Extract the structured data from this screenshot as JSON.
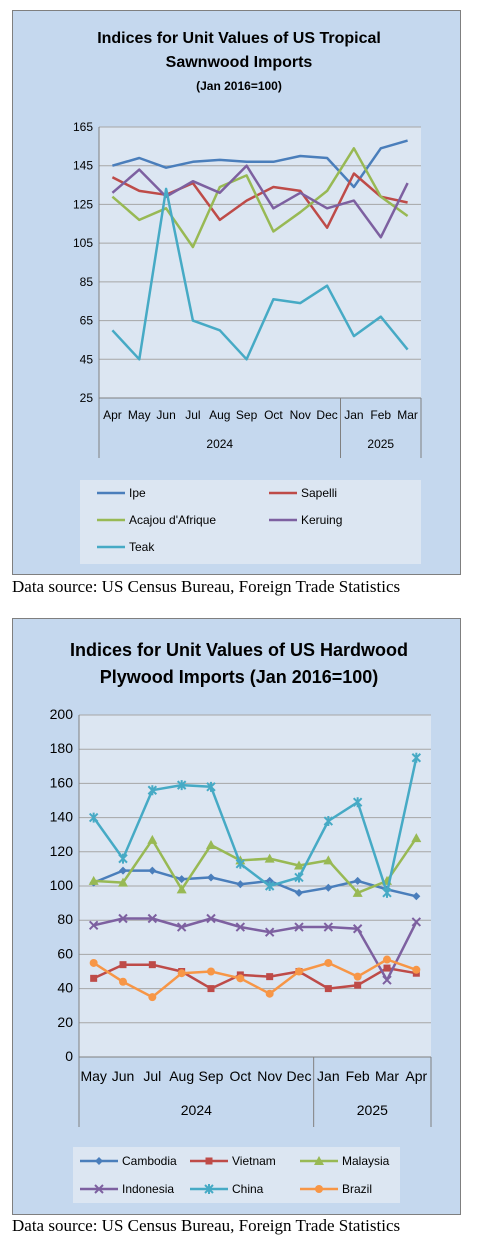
{
  "charts": [
    {
      "chart_data": {
        "type": "line",
        "title_lines": [
          "Indices for Unit Values of US Tropical",
          "Sawnwood Imports"
        ],
        "subtitle": "(Jan 2016=100)",
        "categories": [
          "Apr",
          "May",
          "Jun",
          "Jul",
          "Aug",
          "Sep",
          "Oct",
          "Nov",
          "Dec",
          "Jan",
          "Feb",
          "Mar"
        ],
        "year_groups": [
          {
            "label": "2024",
            "start": 0,
            "end": 8
          },
          {
            "label": "2025",
            "start": 9,
            "end": 11
          }
        ],
        "ylim": [
          25,
          165
        ],
        "yticks": [
          25,
          45,
          65,
          85,
          105,
          125,
          145,
          165
        ],
        "grid": true,
        "legend_position": "bottom",
        "series": [
          {
            "name": "Ipe",
            "color": "#4a7ebb",
            "marker": "none",
            "values": [
              145,
              149,
              144,
              147,
              148,
              147,
              147,
              150,
              149,
              134,
              154,
              158
            ]
          },
          {
            "name": "Sapelli",
            "color": "#be4b48",
            "marker": "none",
            "values": [
              139,
              132,
              130,
              136,
              117,
              127,
              134,
              132,
              113,
              141,
              129,
              126
            ]
          },
          {
            "name": "Acajou d'Afrique",
            "color": "#98b954",
            "marker": "none",
            "values": [
              129,
              117,
              123,
              103,
              134,
              140,
              111,
              121,
              132,
              154,
              129,
              119
            ]
          },
          {
            "name": "Keruing",
            "color": "#7d60a0",
            "marker": "none",
            "values": [
              131,
              143,
              129,
              137,
              131,
              145,
              123,
              131,
              123,
              127,
              108,
              136
            ]
          },
          {
            "name": "Teak",
            "color": "#46aac5",
            "marker": "none",
            "values": [
              60,
              45,
              133,
              65,
              60,
              45,
              76,
              74,
              83,
              57,
              67,
              50
            ]
          }
        ]
      },
      "source": "Data source: US Census Bureau, Foreign Trade Statistics"
    },
    {
      "chart_data": {
        "type": "line",
        "title_lines": [
          "Indices for Unit Values of US Hardwood",
          "Plywood Imports (Jan 2016=100)"
        ],
        "categories": [
          "May",
          "Jun",
          "Jul",
          "Aug",
          "Sep",
          "Oct",
          "Nov",
          "Dec",
          "Jan",
          "Feb",
          "Mar",
          "Apr"
        ],
        "year_groups": [
          {
            "label": "2024",
            "start": 0,
            "end": 7
          },
          {
            "label": "2025",
            "start": 8,
            "end": 11
          }
        ],
        "ylim": [
          0,
          200
        ],
        "yticks": [
          0,
          20,
          40,
          60,
          80,
          100,
          120,
          140,
          160,
          180,
          200
        ],
        "grid": true,
        "legend_position": "bottom",
        "series": [
          {
            "name": "Cambodia",
            "color": "#4a7ebb",
            "marker": "diamond",
            "values": [
              102,
              109,
              109,
              104,
              105,
              101,
              103,
              96,
              99,
              103,
              98,
              94
            ]
          },
          {
            "name": "Vietnam",
            "color": "#be4b48",
            "marker": "square",
            "values": [
              46,
              54,
              54,
              50,
              40,
              48,
              47,
              50,
              40,
              42,
              52,
              49
            ]
          },
          {
            "name": "Malaysia",
            "color": "#98b954",
            "marker": "triangle",
            "values": [
              103,
              102,
              127,
              98,
              124,
              115,
              116,
              112,
              115,
              96,
              103,
              128
            ]
          },
          {
            "name": "Indonesia",
            "color": "#7d60a0",
            "marker": "x",
            "values": [
              77,
              81,
              81,
              76,
              81,
              76,
              73,
              76,
              76,
              75,
              45,
              79
            ]
          },
          {
            "name": "China",
            "color": "#46aac5",
            "marker": "star",
            "values": [
              140,
              116,
              156,
              159,
              158,
              113,
              100,
              105,
              138,
              149,
              96,
              175
            ]
          },
          {
            "name": "Brazil",
            "color": "#f79646",
            "marker": "circle",
            "values": [
              55,
              44,
              35,
              49,
              50,
              46,
              37,
              50,
              55,
              47,
              57,
              51
            ]
          }
        ]
      },
      "source": "Data source: US Census Bureau, Foreign Trade Statistics"
    }
  ]
}
